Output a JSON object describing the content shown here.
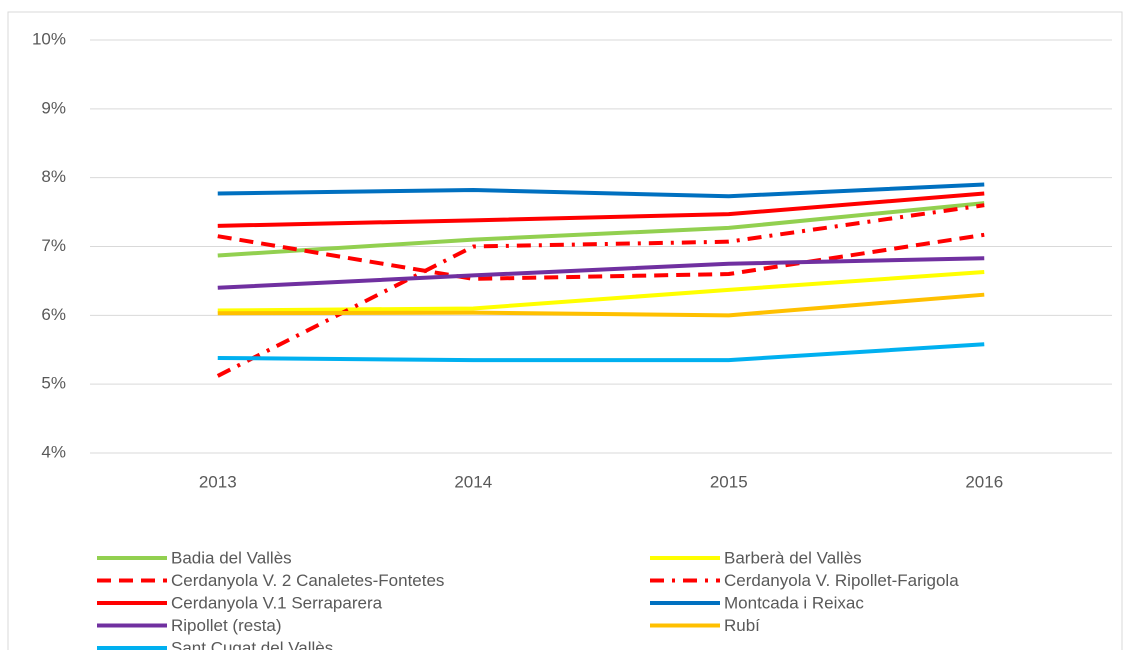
{
  "chart_data": {
    "type": "line",
    "categories": [
      "2013",
      "2014",
      "2015",
      "2016"
    ],
    "ylim": [
      4,
      10
    ],
    "yticks": [
      {
        "value": 4,
        "label": "4%"
      },
      {
        "value": 5,
        "label": "5%"
      },
      {
        "value": 6,
        "label": "6%"
      },
      {
        "value": 7,
        "label": "7%"
      },
      {
        "value": 8,
        "label": "8%"
      },
      {
        "value": 9,
        "label": "9%"
      },
      {
        "value": 10,
        "label": "10%"
      }
    ],
    "grid": true,
    "legend": "bottom",
    "series": [
      {
        "name": "Badia del Vallès",
        "color": "#92d050",
        "dash": "solid",
        "values": [
          6.87,
          7.1,
          7.27,
          7.63
        ]
      },
      {
        "name": "Barberà del Vallès",
        "color": "#ffff00",
        "dash": "solid",
        "values": [
          6.07,
          6.1,
          6.37,
          6.63
        ]
      },
      {
        "name": "Cerdanyola V. 2 Canaletes-Fontetes",
        "color": "#ff0000",
        "dash": "dashed",
        "values": [
          7.15,
          6.53,
          6.6,
          7.17
        ]
      },
      {
        "name": "Cerdanyola V. Ripollet-Farigola",
        "color": "#ff0000",
        "dash": "dashdot",
        "values": [
          5.12,
          7.0,
          7.07,
          7.6
        ]
      },
      {
        "name": "Cerdanyola V.1 Serraparera",
        "color": "#ff0000",
        "dash": "solid",
        "values": [
          7.3,
          7.38,
          7.47,
          7.77
        ]
      },
      {
        "name": "Montcada i Reixac",
        "color": "#0070c0",
        "dash": "solid",
        "values": [
          7.77,
          7.82,
          7.73,
          7.9
        ]
      },
      {
        "name": "Ripollet (resta)",
        "color": "#7030a0",
        "dash": "solid",
        "values": [
          6.4,
          6.58,
          6.75,
          6.83
        ]
      },
      {
        "name": "Rubí",
        "color": "#ffc000",
        "dash": "solid",
        "values": [
          6.03,
          6.04,
          6.0,
          6.3
        ]
      },
      {
        "name": "Sant Cugat del Vallès",
        "color": "#00b0f0",
        "dash": "solid",
        "values": [
          5.38,
          5.35,
          5.35,
          5.58
        ]
      }
    ]
  }
}
